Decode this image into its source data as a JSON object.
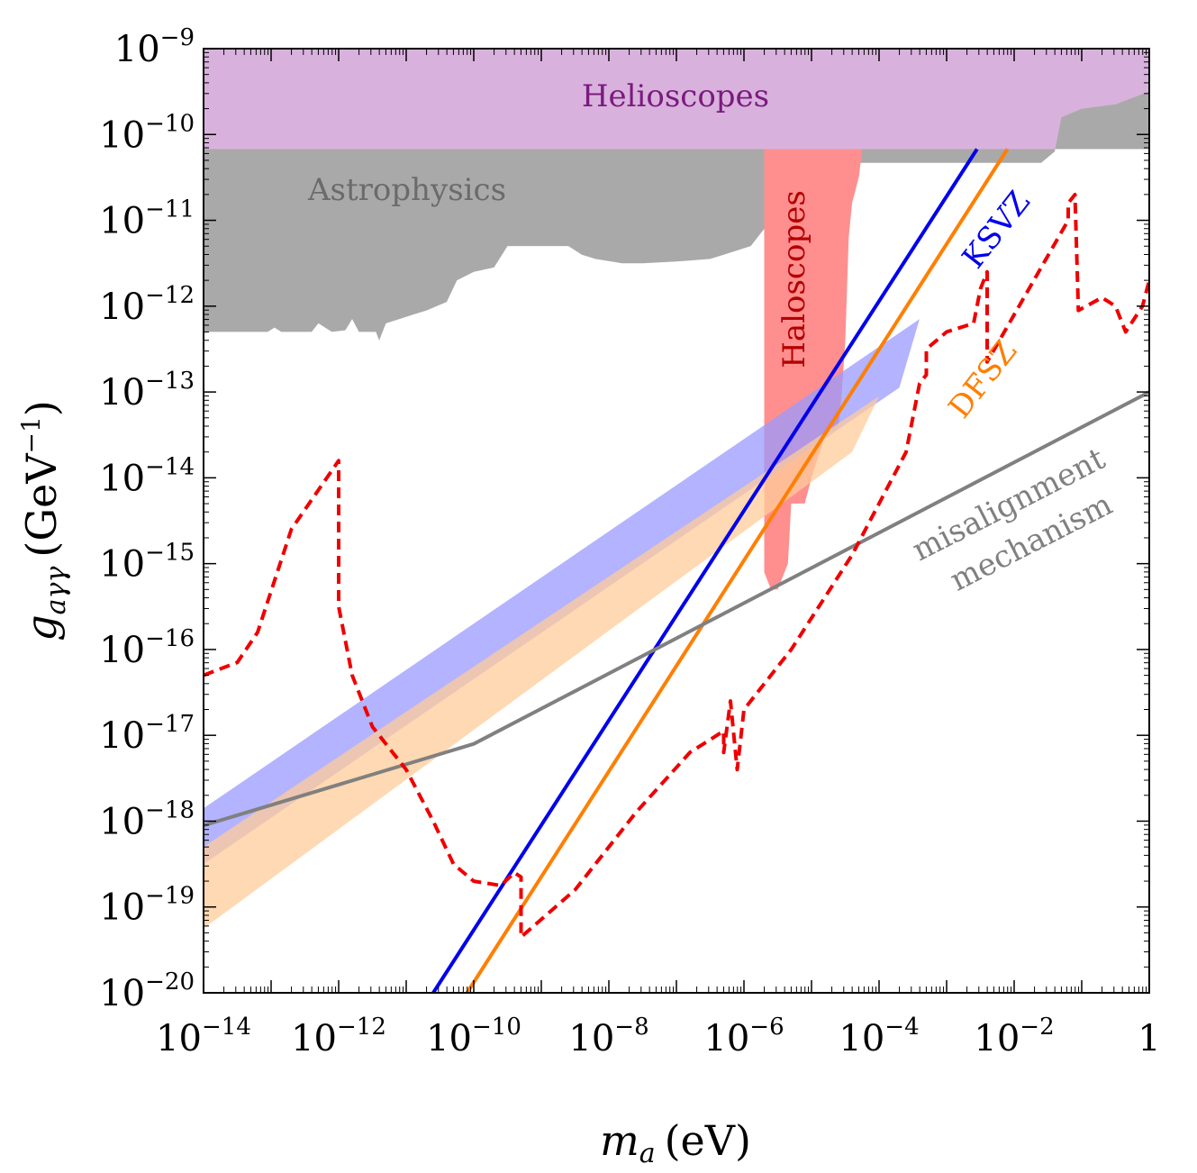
{
  "chart_data": {
    "type": "line",
    "title": "",
    "xlabel_symbol": "m",
    "xlabel_sub": "a",
    "xlabel_unit": "(eV)",
    "ylabel_symbol": "g",
    "ylabel_sub": "aγγ",
    "ylabel_unit_pre": "(GeV",
    "ylabel_unit_exp": "−1",
    "ylabel_unit_post": ")",
    "x_scale": "log10",
    "y_scale": "log10",
    "xlim_log10": [
      -14,
      0
    ],
    "ylim_log10": [
      -20,
      -9
    ],
    "x_ticks": [
      {
        "log": -14,
        "base": "10",
        "exp": "−14"
      },
      {
        "log": -12,
        "base": "10",
        "exp": "−12"
      },
      {
        "log": -10,
        "base": "10",
        "exp": "−10"
      },
      {
        "log": -8,
        "base": "10",
        "exp": "−8"
      },
      {
        "log": -6,
        "base": "10",
        "exp": "−6"
      },
      {
        "log": -4,
        "base": "10",
        "exp": "−4"
      },
      {
        "log": -2,
        "base": "10",
        "exp": "−2"
      },
      {
        "log": 0,
        "base": "1",
        "exp": ""
      }
    ],
    "y_ticks": [
      {
        "log": -9,
        "base": "10",
        "exp": "−9"
      },
      {
        "log": -10,
        "base": "10",
        "exp": "−10"
      },
      {
        "log": -11,
        "base": "10",
        "exp": "−11"
      },
      {
        "log": -12,
        "base": "10",
        "exp": "−12"
      },
      {
        "log": -13,
        "base": "10",
        "exp": "−13"
      },
      {
        "log": -14,
        "base": "10",
        "exp": "−14"
      },
      {
        "log": -15,
        "base": "10",
        "exp": "−15"
      },
      {
        "log": -16,
        "base": "10",
        "exp": "−16"
      },
      {
        "log": -17,
        "base": "10",
        "exp": "−17"
      },
      {
        "log": -18,
        "base": "10",
        "exp": "−18"
      },
      {
        "log": -19,
        "base": "10",
        "exp": "−19"
      },
      {
        "log": -20,
        "base": "10",
        "exp": "−20"
      }
    ],
    "regions": [
      {
        "name": "Helioscopes",
        "label": "Helioscopes",
        "fill": "#d8b2dc",
        "label_color": "#7b1a7f",
        "points_log10": [
          [
            -14,
            -9
          ],
          [
            0,
            -9
          ],
          [
            0,
            -10.17
          ],
          [
            -14,
            -10.17
          ]
        ]
      },
      {
        "name": "Astrophysics",
        "label": "Astrophysics",
        "fill": "#a9a9a9",
        "label_color": "#6b6b6b",
        "points_log10": [
          [
            -14,
            -10.17
          ],
          [
            -14,
            -12.3
          ],
          [
            -13.05,
            -12.3
          ],
          [
            -12.95,
            -12.25
          ],
          [
            -12.85,
            -12.3
          ],
          [
            -12.4,
            -12.3
          ],
          [
            -12.3,
            -12.2
          ],
          [
            -12.1,
            -12.3
          ],
          [
            -11.9,
            -12.28
          ],
          [
            -11.8,
            -12.15
          ],
          [
            -11.7,
            -12.3
          ],
          [
            -11.45,
            -12.3
          ],
          [
            -11.4,
            -12.4
          ],
          [
            -11.3,
            -12.2
          ],
          [
            -11.1,
            -12.15
          ],
          [
            -10.9,
            -12.1
          ],
          [
            -10.7,
            -12.05
          ],
          [
            -10.4,
            -11.95
          ],
          [
            -10.25,
            -11.7
          ],
          [
            -10.0,
            -11.6
          ],
          [
            -9.7,
            -11.55
          ],
          [
            -9.5,
            -11.3
          ],
          [
            -8.6,
            -11.3
          ],
          [
            -8.4,
            -11.4
          ],
          [
            -8.2,
            -11.45
          ],
          [
            -7.8,
            -11.5
          ],
          [
            -7.5,
            -11.5
          ],
          [
            -7.0,
            -11.48
          ],
          [
            -6.5,
            -11.45
          ],
          [
            -6.3,
            -11.4
          ],
          [
            -5.9,
            -11.3
          ],
          [
            -5.6,
            -11.0
          ],
          [
            -5.3,
            -10.7
          ],
          [
            -4.9,
            -10.4
          ],
          [
            -4.6,
            -10.3
          ],
          [
            -4.4,
            -10.33
          ],
          [
            -3.0,
            -10.33
          ],
          [
            -1.6,
            -10.33
          ],
          [
            -1.4,
            -10.2
          ],
          [
            -1.3,
            -9.8
          ],
          [
            -1.0,
            -9.7
          ],
          [
            -0.5,
            -9.65
          ],
          [
            0,
            -9.5
          ],
          [
            0,
            -10.17
          ]
        ]
      },
      {
        "name": "Haloscopes",
        "label": "Haloscopes",
        "fill": "#ff8f8f",
        "label_color": "#b30000",
        "points_log10": [
          [
            -5.7,
            -10.17
          ],
          [
            -5.7,
            -15.1
          ],
          [
            -5.6,
            -15.3
          ],
          [
            -5.5,
            -15.3
          ],
          [
            -5.35,
            -15.0
          ],
          [
            -5.3,
            -14.3
          ],
          [
            -5.1,
            -14.3
          ],
          [
            -5.0,
            -14.0
          ],
          [
            -4.8,
            -13.5
          ],
          [
            -4.6,
            -13.4
          ],
          [
            -4.55,
            -13.0
          ],
          [
            -4.5,
            -12.4
          ],
          [
            -4.45,
            -11.2
          ],
          [
            -4.4,
            -10.8
          ],
          [
            -4.3,
            -10.5
          ],
          [
            -4.25,
            -10.17
          ]
        ]
      }
    ],
    "bands": [
      {
        "name": "KSVZ band",
        "fill": "#9999ff",
        "polygon_log10": [
          [
            -14,
            -17.85
          ],
          [
            -3.4,
            -12.15
          ],
          [
            -3.7,
            -12.95
          ],
          [
            -14,
            -18.5
          ]
        ]
      },
      {
        "name": "DFSZ band",
        "fill": "#ffcc99",
        "polygon_log10": [
          [
            -14,
            -18.3
          ],
          [
            -4.0,
            -13.05
          ],
          [
            -4.4,
            -13.7
          ],
          [
            -14,
            -19.25
          ]
        ]
      }
    ],
    "series": [
      {
        "name": "KSVZ",
        "label": "KSVZ",
        "color": "#0000ee",
        "dash": "solid",
        "points_log10": [
          [
            -10.6,
            -20
          ],
          [
            -2.55,
            -10.17
          ]
        ]
      },
      {
        "name": "DFSZ",
        "label": "DFSZ",
        "color": "#ff7f00",
        "dash": "solid",
        "points_log10": [
          [
            -10.1,
            -20
          ],
          [
            -2.1,
            -10.17
          ]
        ]
      },
      {
        "name": "misalignment mechanism",
        "label_line1": "misalignment",
        "label_line2": "mechanism",
        "color": "#808080",
        "dash": "solid",
        "points_log10": [
          [
            -14,
            -18.05
          ],
          [
            -10.0,
            -17.1
          ],
          [
            0,
            -13.0
          ]
        ]
      },
      {
        "name": "projected sensitivity",
        "color": "#ee0000",
        "dash": "dashed",
        "points_log10": [
          [
            -14,
            -16.3
          ],
          [
            -13.5,
            -16.15
          ],
          [
            -13.2,
            -15.8
          ],
          [
            -12.7,
            -14.6
          ],
          [
            -12.0,
            -13.8
          ],
          [
            -12.0,
            -15.5
          ],
          [
            -11.8,
            -16.3
          ],
          [
            -11.5,
            -16.9
          ],
          [
            -11.0,
            -17.4
          ],
          [
            -10.6,
            -18.0
          ],
          [
            -10.3,
            -18.5
          ],
          [
            -10.0,
            -18.7
          ],
          [
            -9.6,
            -18.75
          ],
          [
            -9.4,
            -18.6
          ],
          [
            -9.3,
            -18.65
          ],
          [
            -9.3,
            -19.2
          ],
          [
            -9.3,
            -19.35
          ],
          [
            -8.5,
            -18.8
          ],
          [
            -7.6,
            -17.9
          ],
          [
            -6.8,
            -17.2
          ],
          [
            -6.3,
            -16.95
          ],
          [
            -6.3,
            -17.2
          ],
          [
            -6.2,
            -16.6
          ],
          [
            -6.1,
            -17.4
          ],
          [
            -6.0,
            -16.7
          ],
          [
            -5.3,
            -16.0
          ],
          [
            -4.4,
            -14.9
          ],
          [
            -3.6,
            -13.7
          ],
          [
            -3.4,
            -12.9
          ],
          [
            -3.3,
            -12.8
          ],
          [
            -3.3,
            -12.5
          ],
          [
            -3.0,
            -12.3
          ],
          [
            -2.6,
            -12.2
          ],
          [
            -2.5,
            -11.8
          ],
          [
            -2.4,
            -11.6
          ],
          [
            -2.4,
            -12.65
          ],
          [
            -2.0,
            -12.1
          ],
          [
            -1.2,
            -11.0
          ],
          [
            -1.2,
            -10.8
          ],
          [
            -1.1,
            -10.7
          ],
          [
            -1.05,
            -12.05
          ],
          [
            -0.7,
            -11.9
          ],
          [
            -0.5,
            -12.0
          ],
          [
            -0.35,
            -12.3
          ],
          [
            -0.1,
            -12.0
          ],
          [
            0,
            -11.7
          ]
        ]
      }
    ]
  }
}
